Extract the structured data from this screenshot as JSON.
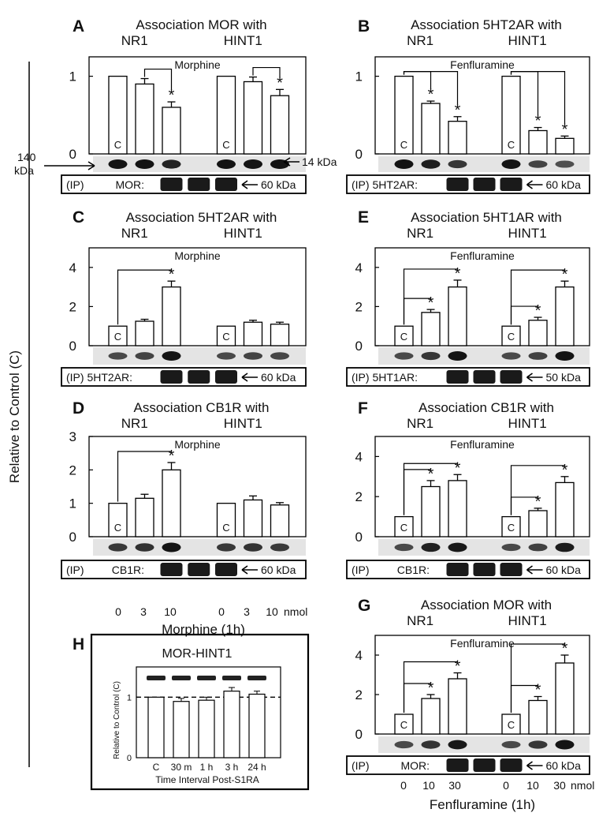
{
  "figure": {
    "y_axis_label": "Relative to Control (C)",
    "x_labels": {
      "morphine_doses": [
        "0",
        "3",
        "10"
      ],
      "morphine_unit": "nmol",
      "morphine_axis": "Morphine (1h)",
      "fenfluramine_doses": [
        "0",
        "10",
        "30"
      ],
      "fenfluramine_unit": "nmol",
      "fenfluramine_axis": "Fenfluramine (1h)"
    },
    "annotations": {
      "kda_140": "140",
      "kda_word": "kDa",
      "kda_14": "14 kDa"
    }
  },
  "chart_data": [
    {
      "id": "A",
      "type": "bar",
      "title": "Association MOR with",
      "group_labels": [
        "NR1",
        "HINT1"
      ],
      "treatment": "Morphine",
      "ylim": [
        0,
        1.25
      ],
      "yticks": [
        0,
        1
      ],
      "series": [
        {
          "name": "NR1",
          "values": [
            1.0,
            0.9,
            0.6
          ],
          "errors": [
            0,
            0.07,
            0.07
          ]
        },
        {
          "name": "HINT1",
          "values": [
            1.0,
            0.93,
            0.75
          ],
          "errors": [
            0,
            0.06,
            0.08
          ]
        }
      ],
      "control_label": "C",
      "significance": [
        {
          "series": 0,
          "from": 1,
          "to": 2,
          "label": "*"
        },
        {
          "series": 1,
          "from": 1,
          "to": 2,
          "label": "*"
        }
      ],
      "ip_label": "(IP)",
      "ip_target": "MOR:",
      "ip_kda": "60 kDa"
    },
    {
      "id": "B",
      "type": "bar",
      "title": "Association 5HT2AR with",
      "group_labels": [
        "NR1",
        "HINT1"
      ],
      "treatment": "Fenfluramine",
      "ylim": [
        0,
        1.25
      ],
      "yticks": [
        0,
        1
      ],
      "series": [
        {
          "name": "NR1",
          "values": [
            1.0,
            0.65,
            0.42
          ],
          "errors": [
            0,
            0.03,
            0.06
          ]
        },
        {
          "name": "HINT1",
          "values": [
            1.0,
            0.3,
            0.2
          ],
          "errors": [
            0,
            0.04,
            0.03
          ]
        }
      ],
      "control_label": "C",
      "significance": [
        {
          "series": 0,
          "from": 0,
          "to": 1,
          "label": "*"
        },
        {
          "series": 0,
          "from": 0,
          "to": 2,
          "label": "*"
        },
        {
          "series": 1,
          "from": 0,
          "to": 1,
          "label": "*"
        },
        {
          "series": 1,
          "from": 0,
          "to": 2,
          "label": "*"
        }
      ],
      "ip_label": "(IP) 5HT2AR:",
      "ip_target": "",
      "ip_kda": "60 kDa"
    },
    {
      "id": "C",
      "type": "bar",
      "title": "Association 5HT2AR with",
      "group_labels": [
        "NR1",
        "HINT1"
      ],
      "treatment": "Morphine",
      "ylim": [
        0,
        5
      ],
      "yticks": [
        0,
        2,
        4
      ],
      "series": [
        {
          "name": "NR1",
          "values": [
            1.0,
            1.25,
            3.0
          ],
          "errors": [
            0,
            0.1,
            0.3
          ]
        },
        {
          "name": "HINT1",
          "values": [
            1.0,
            1.2,
            1.1
          ],
          "errors": [
            0,
            0.1,
            0.1
          ]
        }
      ],
      "control_label": "C",
      "significance": [
        {
          "series": 0,
          "from": 0,
          "to": 2,
          "label": "*"
        }
      ],
      "ip_label": "(IP) 5HT2AR:",
      "ip_target": "",
      "ip_kda": "60 kDa"
    },
    {
      "id": "E",
      "type": "bar",
      "title": "Association 5HT1AR with",
      "group_labels": [
        "NR1",
        "HINT1"
      ],
      "treatment": "Fenfluramine",
      "ylim": [
        0,
        5
      ],
      "yticks": [
        0,
        2,
        4
      ],
      "series": [
        {
          "name": "NR1",
          "values": [
            1.0,
            1.7,
            3.0
          ],
          "errors": [
            0,
            0.15,
            0.35
          ]
        },
        {
          "name": "HINT1",
          "values": [
            1.0,
            1.3,
            3.0
          ],
          "errors": [
            0,
            0.15,
            0.3
          ]
        }
      ],
      "control_label": "C",
      "significance": [
        {
          "series": 0,
          "from": 0,
          "to": 1,
          "label": "*"
        },
        {
          "series": 0,
          "from": 0,
          "to": 2,
          "label": "*"
        },
        {
          "series": 1,
          "from": 0,
          "to": 1,
          "label": "*"
        },
        {
          "series": 1,
          "from": 0,
          "to": 2,
          "label": "*"
        }
      ],
      "ip_label": "(IP) 5HT1AR:",
      "ip_target": "",
      "ip_kda": "50 kDa"
    },
    {
      "id": "D",
      "type": "bar",
      "title": "Association CB1R with",
      "group_labels": [
        "NR1",
        "HINT1"
      ],
      "treatment": "Morphine",
      "ylim": [
        0,
        3
      ],
      "yticks": [
        0,
        1,
        2,
        3
      ],
      "series": [
        {
          "name": "NR1",
          "values": [
            1.0,
            1.15,
            2.0
          ],
          "errors": [
            0,
            0.12,
            0.22
          ]
        },
        {
          "name": "HINT1",
          "values": [
            1.0,
            1.1,
            0.95
          ],
          "errors": [
            0,
            0.12,
            0.07
          ]
        }
      ],
      "control_label": "C",
      "significance": [
        {
          "series": 0,
          "from": 0,
          "to": 2,
          "label": "*"
        }
      ],
      "ip_label": "(IP)",
      "ip_target": "CB1R:",
      "ip_kda": "60 kDa"
    },
    {
      "id": "F",
      "type": "bar",
      "title": "Association CB1R with",
      "group_labels": [
        "NR1",
        "HINT1"
      ],
      "treatment": "Fenfluramine",
      "ylim": [
        0,
        5
      ],
      "yticks": [
        0,
        2,
        4
      ],
      "series": [
        {
          "name": "NR1",
          "values": [
            1.0,
            2.5,
            2.8
          ],
          "errors": [
            0,
            0.3,
            0.3
          ]
        },
        {
          "name": "HINT1",
          "values": [
            1.0,
            1.3,
            2.7
          ],
          "errors": [
            0,
            0.12,
            0.3
          ]
        }
      ],
      "control_label": "C",
      "significance": [
        {
          "series": 0,
          "from": 0,
          "to": 1,
          "label": "*"
        },
        {
          "series": 0,
          "from": 0,
          "to": 2,
          "label": "*"
        },
        {
          "series": 1,
          "from": 0,
          "to": 1,
          "label": "*"
        },
        {
          "series": 1,
          "from": 0,
          "to": 2,
          "label": "*"
        }
      ],
      "ip_label": "(IP)",
      "ip_target": "CB1R:",
      "ip_kda": "60 kDa"
    },
    {
      "id": "G",
      "type": "bar",
      "title": "Association MOR with",
      "group_labels": [
        "NR1",
        "HINT1"
      ],
      "treatment": "Fenfluramine",
      "ylim": [
        0,
        5
      ],
      "yticks": [
        0,
        2,
        4
      ],
      "series": [
        {
          "name": "NR1",
          "values": [
            1.0,
            1.8,
            2.8
          ],
          "errors": [
            0,
            0.2,
            0.3
          ]
        },
        {
          "name": "HINT1",
          "values": [
            1.0,
            1.7,
            3.6
          ],
          "errors": [
            0,
            0.2,
            0.4
          ]
        }
      ],
      "control_label": "C",
      "significance": [
        {
          "series": 0,
          "from": 0,
          "to": 1,
          "label": "*"
        },
        {
          "series": 0,
          "from": 0,
          "to": 2,
          "label": "*"
        },
        {
          "series": 1,
          "from": 0,
          "to": 1,
          "label": "*"
        },
        {
          "series": 1,
          "from": 0,
          "to": 2,
          "label": "*"
        }
      ],
      "ip_label": "(IP)",
      "ip_target": "MOR:",
      "ip_kda": "60 kDa"
    },
    {
      "id": "H",
      "type": "bar",
      "title": "MOR-HINT1",
      "ylabel": "Relative to Control (C)",
      "xlabel": "Time Interval Post-S1RA",
      "categories": [
        "C",
        "30 m",
        "1 h",
        "3 h",
        "24 h"
      ],
      "values": [
        1.0,
        0.93,
        0.95,
        1.1,
        1.05
      ],
      "errors": [
        0,
        0.05,
        0.05,
        0.06,
        0.05
      ],
      "ylim": [
        0,
        1.5
      ],
      "yticks": [
        0,
        1
      ],
      "reference_line": 1
    }
  ]
}
